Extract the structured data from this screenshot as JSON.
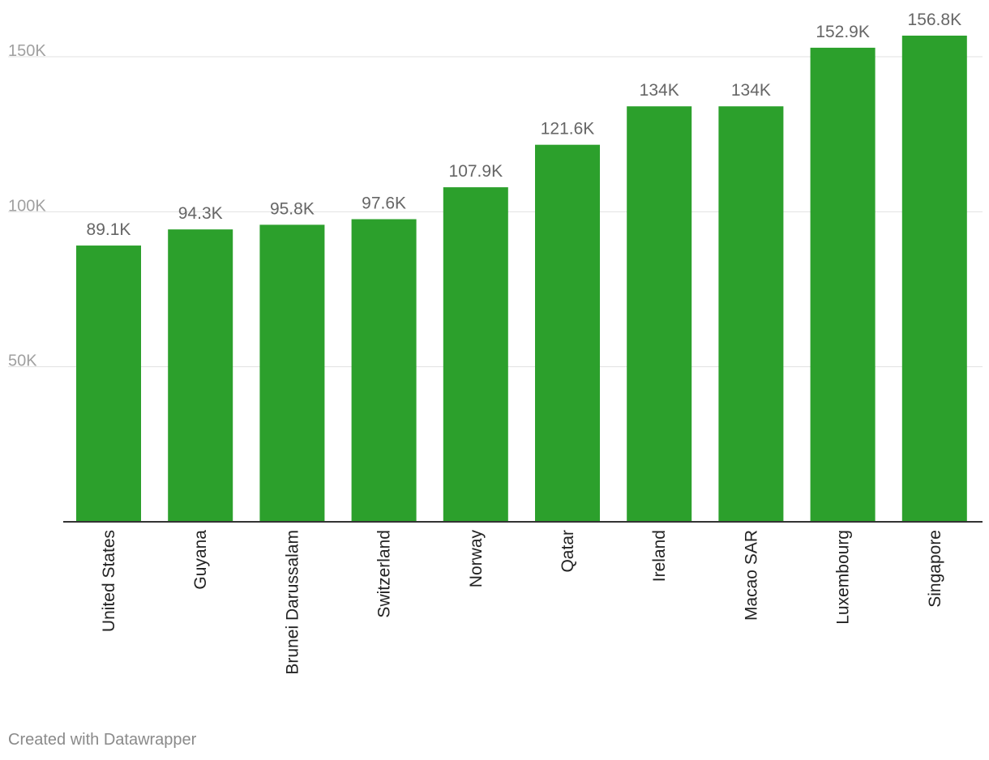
{
  "chart_data": {
    "type": "bar",
    "title": "",
    "xlabel": "",
    "ylabel": "",
    "categories": [
      "United States",
      "Guyana",
      "Brunei Darussalam",
      "Switzerland",
      "Norway",
      "Qatar",
      "Ireland",
      "Macao SAR",
      "Luxembourg",
      "Singapore"
    ],
    "values": [
      89.1,
      94.3,
      95.8,
      97.6,
      107.9,
      121.6,
      134,
      134,
      152.9,
      156.8
    ],
    "value_labels": [
      "89.1K",
      "94.3K",
      "95.8K",
      "97.6K",
      "107.9K",
      "121.6K",
      "134K",
      "134K",
      "152.9K",
      "156.8K"
    ],
    "y_ticks": [
      50,
      100,
      150
    ],
    "y_tick_labels": [
      "50K",
      "100K",
      "150K"
    ],
    "ylim": [
      0,
      150
    ],
    "grid": true,
    "legend": "none",
    "colors": {
      "bar": "#2ca02c",
      "grid": "#e1e1e1",
      "axis": "#333333",
      "tick_label": "#a0a0a0",
      "value_label": "#666666",
      "category_label": "#222222"
    }
  },
  "footer": {
    "credit": "Created with Datawrapper"
  }
}
